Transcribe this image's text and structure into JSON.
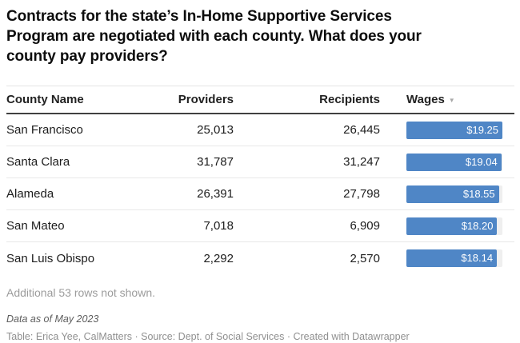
{
  "title": "Contracts for the state’s In-Home Supportive Services Program are negotiated with each county. What does your county pay providers?",
  "title_lines": [
    "Contracts for the state’s In-Home Supportive Services",
    "Program are negotiated with each county. What does your",
    "county pay providers?"
  ],
  "colors": {
    "bar_blue": "#4f86c6",
    "bar_track": "#efefef",
    "header_rule": "#404040",
    "row_rule": "#e8e8e8"
  },
  "table": {
    "columns": [
      {
        "label": "County Name",
        "align": "left"
      },
      {
        "label": "Providers",
        "align": "right"
      },
      {
        "label": "Recipients",
        "align": "right"
      },
      {
        "label": "Wages",
        "align": "left",
        "sorted": "desc"
      }
    ],
    "sort_icon": "▼",
    "wage_axis_max": 19.25,
    "rows": [
      {
        "county": "San Francisco",
        "providers": "25,013",
        "recipients": "26,445",
        "wage": 19.25,
        "wage_label": "$19.25"
      },
      {
        "county": "Santa Clara",
        "providers": "31,787",
        "recipients": "31,247",
        "wage": 19.04,
        "wage_label": "$19.04"
      },
      {
        "county": "Alameda",
        "providers": "26,391",
        "recipients": "27,798",
        "wage": 18.55,
        "wage_label": "$18.55"
      },
      {
        "county": "San Mateo",
        "providers": "7,018",
        "recipients": "6,909",
        "wage": 18.2,
        "wage_label": "$18.20"
      },
      {
        "county": "San Luis Obispo",
        "providers": "2,292",
        "recipients": "2,570",
        "wage": 18.14,
        "wage_label": "$18.14"
      }
    ],
    "footnote": "Additional 53 rows not shown."
  },
  "footer": {
    "note": "Data as of May 2023",
    "byline": "Table: Erica Yee, CalMatters · Source: Dept. of Social Services · Created with Datawrapper"
  },
  "chart_data": {
    "type": "table",
    "title": "Contracts for the state’s In-Home Supportive Services Program are negotiated with each county. What does your county pay providers?",
    "columns": [
      "County Name",
      "Providers",
      "Recipients",
      "Wages"
    ],
    "rows": [
      [
        "San Francisco",
        25013,
        26445,
        19.25
      ],
      [
        "Santa Clara",
        31787,
        31247,
        19.04
      ],
      [
        "Alameda",
        26391,
        27798,
        18.55
      ],
      [
        "San Mateo",
        7018,
        6909,
        18.2
      ],
      [
        "San Luis Obispo",
        2292,
        2570,
        18.14
      ]
    ],
    "wages_rendered_as": "bar",
    "bar_axis_range": [
      0,
      19.25
    ],
    "sort": {
      "column": "Wages",
      "direction": "desc"
    },
    "rows_not_shown": 53,
    "notes": "Data as of May 2023",
    "byline": "Table: Erica Yee, CalMatters · Source: Dept. of Social Services · Created with Datawrapper"
  }
}
